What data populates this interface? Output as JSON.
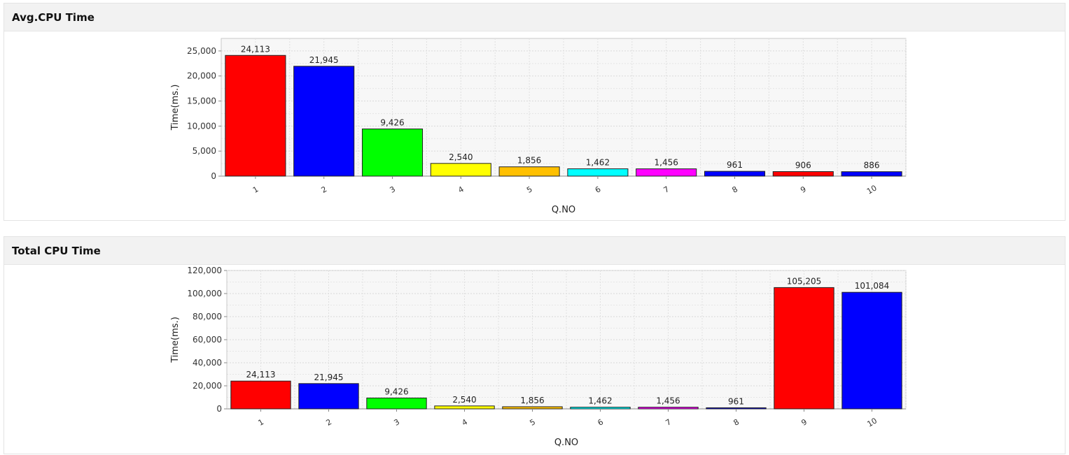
{
  "panels": [
    {
      "title": "Avg.CPU Time"
    },
    {
      "title": "Total CPU Time"
    }
  ],
  "chart_data": [
    {
      "type": "bar",
      "title": "Avg.CPU Time",
      "xlabel": "Q.NO",
      "ylabel": "Time(ms.)",
      "categories": [
        "1",
        "2",
        "3",
        "4",
        "5",
        "6",
        "7",
        "8",
        "9",
        "10"
      ],
      "values": [
        24113,
        21945,
        9426,
        2540,
        1856,
        1462,
        1456,
        961,
        906,
        886
      ],
      "value_labels": [
        "24,113",
        "21,945",
        "9,426",
        "2,540",
        "1,856",
        "1,462",
        "1,456",
        "961",
        "906",
        "886"
      ],
      "colors": [
        "#ff0000",
        "#0000ff",
        "#00ff00",
        "#ffff00",
        "#ffc000",
        "#00ffff",
        "#ff00ff",
        "#0000ff",
        "#ff0000",
        "#0000ff"
      ],
      "ylim": [
        0,
        27500
      ],
      "yticks": [
        0,
        5000,
        10000,
        15000,
        20000,
        25000
      ],
      "ytick_labels": [
        "0",
        "5,000",
        "10,000",
        "15,000",
        "20,000",
        "25,000"
      ],
      "grid": true,
      "legend": "none"
    },
    {
      "type": "bar",
      "title": "Total CPU Time",
      "xlabel": "Q.NO",
      "ylabel": "Time(ms.)",
      "categories": [
        "1",
        "2",
        "3",
        "4",
        "5",
        "6",
        "7",
        "8",
        "9",
        "10"
      ],
      "values": [
        24113,
        21945,
        9426,
        2540,
        1856,
        1462,
        1456,
        961,
        105205,
        101084
      ],
      "value_labels": [
        "24,113",
        "21,945",
        "9,426",
        "2,540",
        "1,856",
        "1,462",
        "1,456",
        "961",
        "105,205",
        "101,084"
      ],
      "colors": [
        "#ff0000",
        "#0000ff",
        "#00ff00",
        "#ffff00",
        "#ffc000",
        "#00ffff",
        "#ff00ff",
        "#0000ff",
        "#ff0000",
        "#0000ff"
      ],
      "ylim": [
        0,
        120000
      ],
      "yticks": [
        0,
        20000,
        40000,
        60000,
        80000,
        100000,
        120000
      ],
      "ytick_labels": [
        "0",
        "20,000",
        "40,000",
        "60,000",
        "80,000",
        "100,000",
        "120,000"
      ],
      "grid": true,
      "legend": "none"
    }
  ]
}
